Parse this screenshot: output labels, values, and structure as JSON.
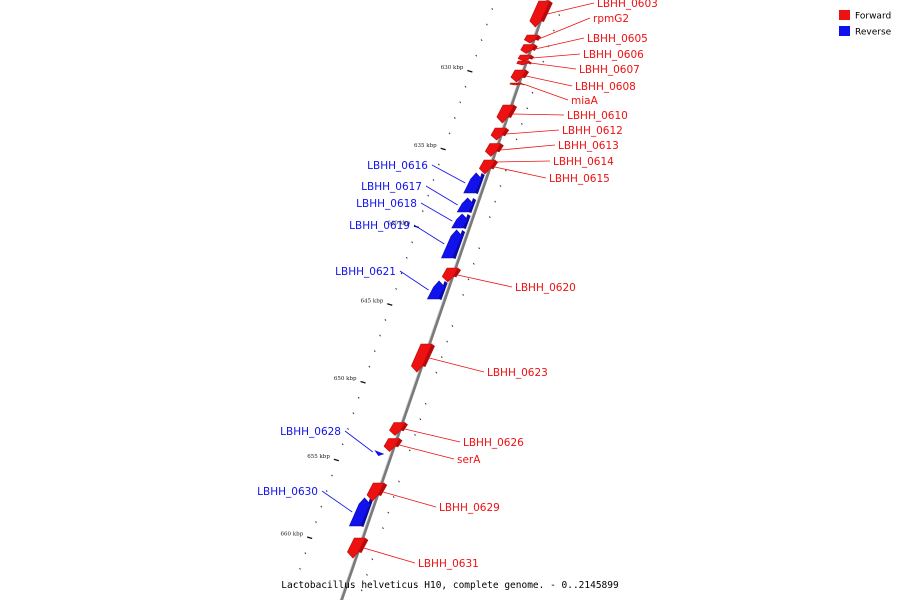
{
  "caption": "Lactobacillus helveticus H10, complete genome. - 0..2145899",
  "legend": {
    "forward": {
      "label": "Forward",
      "color": "#ee1111"
    },
    "reverse": {
      "label": "Reverse",
      "color": "#1111ee"
    }
  },
  "axis": {
    "major_ticks": [
      {
        "kbp": 630,
        "label": "630 kbp"
      },
      {
        "kbp": 635,
        "label": "635 kbp"
      },
      {
        "kbp": 640,
        "label": "640 kbp"
      },
      {
        "kbp": 645,
        "label": "645 kbp"
      },
      {
        "kbp": 650,
        "label": "650 kbp"
      },
      {
        "kbp": 655,
        "label": "655 kbp"
      },
      {
        "kbp": 660,
        "label": "660 kbp"
      }
    ]
  },
  "genes": [
    {
      "name": "LBHH_0603",
      "strand": "forward"
    },
    {
      "name": "rpmG2",
      "strand": "forward"
    },
    {
      "name": "LBHH_0605",
      "strand": "forward"
    },
    {
      "name": "LBHH_0606",
      "strand": "forward"
    },
    {
      "name": "LBHH_0607",
      "strand": "forward"
    },
    {
      "name": "LBHH_0608",
      "strand": "forward"
    },
    {
      "name": "miaA",
      "strand": "forward"
    },
    {
      "name": "LBHH_0610",
      "strand": "forward"
    },
    {
      "name": "LBHH_0612",
      "strand": "forward"
    },
    {
      "name": "LBHH_0613",
      "strand": "forward"
    },
    {
      "name": "LBHH_0614",
      "strand": "forward"
    },
    {
      "name": "LBHH_0615",
      "strand": "forward"
    },
    {
      "name": "LBHH_0616",
      "strand": "reverse"
    },
    {
      "name": "LBHH_0617",
      "strand": "reverse"
    },
    {
      "name": "LBHH_0618",
      "strand": "reverse"
    },
    {
      "name": "LBHH_0619",
      "strand": "reverse"
    },
    {
      "name": "LBHH_0621",
      "strand": "reverse"
    },
    {
      "name": "LBHH_0620",
      "strand": "forward"
    },
    {
      "name": "LBHH_0623",
      "strand": "forward"
    },
    {
      "name": "LBHH_0628",
      "strand": "reverse"
    },
    {
      "name": "LBHH_0626",
      "strand": "forward"
    },
    {
      "name": "serA",
      "strand": "forward"
    },
    {
      "name": "LBHH_0630",
      "strand": "reverse"
    },
    {
      "name": "LBHH_0629",
      "strand": "forward"
    },
    {
      "name": "LBHH_0631",
      "strand": "forward"
    }
  ]
}
